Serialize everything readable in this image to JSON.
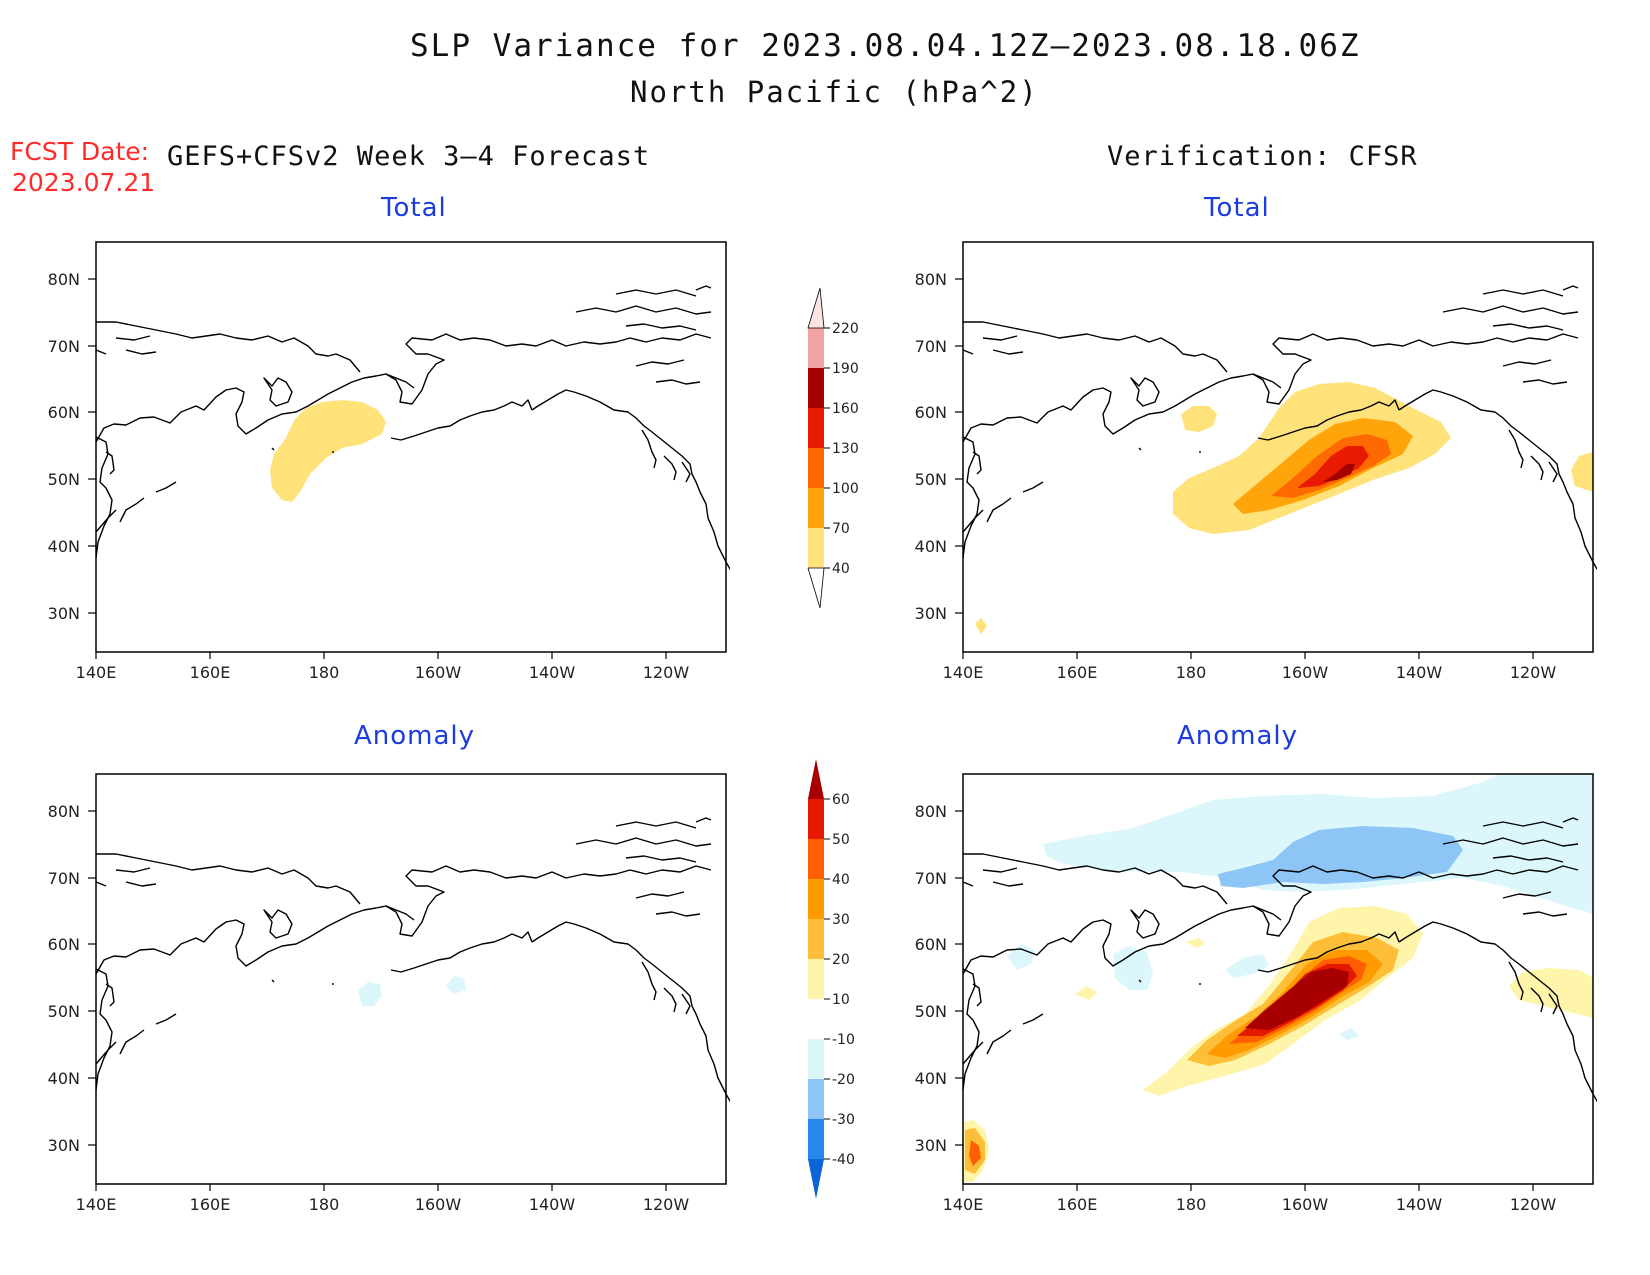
{
  "title": "SLP Variance for 2023.08.04.12Z–2023.08.18.06Z",
  "subtitle": "North Pacific (hPa^2)",
  "fcst_date_label": "FCST Date:",
  "fcst_date_value": "2023.07.21",
  "left_heading": "GEFS+CFSv2 Week 3–4 Forecast",
  "right_heading": "Verification: CFSR",
  "panels": [
    {
      "id": "fcst-total",
      "title": "Total"
    },
    {
      "id": "verif-total",
      "title": "Total"
    },
    {
      "id": "fcst-anomaly",
      "title": "Anomaly"
    },
    {
      "id": "verif-anomaly",
      "title": "Anomaly"
    }
  ],
  "axes": {
    "lon_ticks": [
      "140E",
      "160E",
      "180",
      "160W",
      "140W",
      "120W"
    ],
    "lat_ticks": [
      "80N",
      "70N",
      "60N",
      "50N",
      "40N",
      "30N"
    ]
  },
  "colorbars": {
    "total": {
      "levels": [
        "40",
        "70",
        "100",
        "130",
        "160",
        "190",
        "220"
      ],
      "colors": [
        "#ffe27a",
        "#ffa40a",
        "#ff6a00",
        "#e81a00",
        "#a50000",
        "#f3a3a3",
        "#fde4e4"
      ]
    },
    "anomaly": {
      "levels": [
        "-40",
        "-30",
        "-20",
        "-10",
        "10",
        "20",
        "30",
        "40",
        "50",
        "60"
      ],
      "colors": [
        "#0a64d8",
        "#2a86ef",
        "#8cc5f6",
        "#dcf7fc",
        "#ffffff",
        "#fff5aa",
        "#ffbe37",
        "#ff9a00",
        "#ff5f00",
        "#e51800",
        "#a80000"
      ]
    }
  },
  "colors": {
    "land_outline": "#000000",
    "yellow": "#ffe27a",
    "orange": "#ffa40a",
    "deep_orange": "#ff6a00",
    "red": "#e81a00",
    "dark_red": "#a50000",
    "pale_yellow": "#fff5aa",
    "light_cyan": "#dcf7fc",
    "light_blue": "#8cc5f6"
  }
}
